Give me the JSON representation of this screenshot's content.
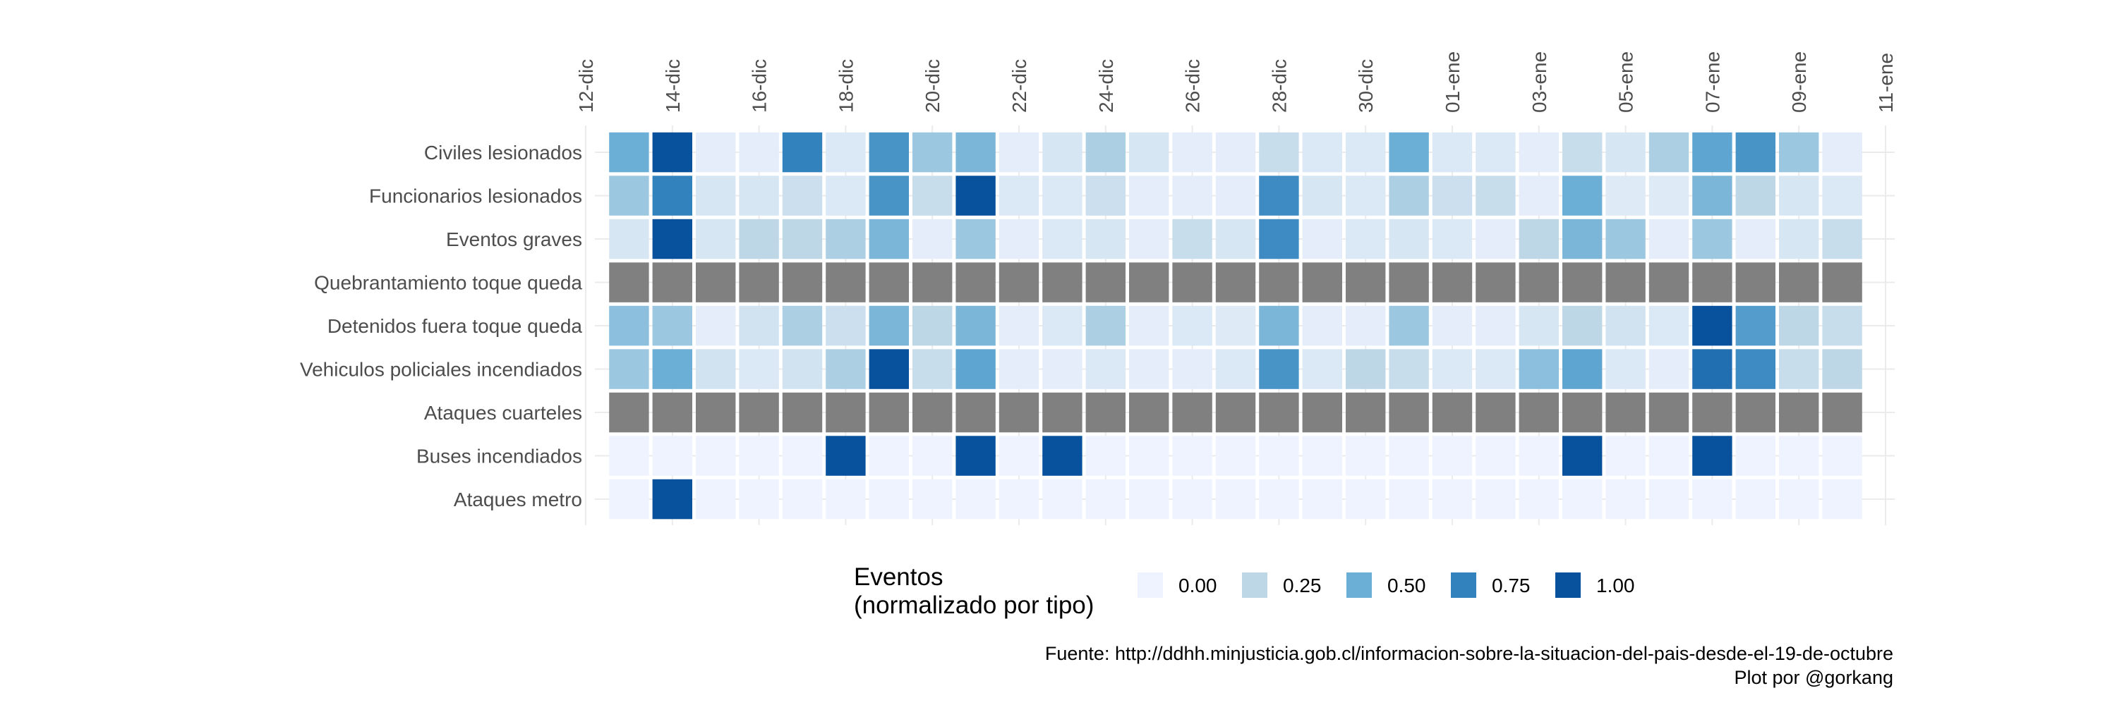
{
  "chart_data": {
    "type": "heatmap",
    "x_start": "12-dic",
    "x_tick_labels": [
      "12-dic",
      "14-dic",
      "16-dic",
      "18-dic",
      "20-dic",
      "22-dic",
      "24-dic",
      "26-dic",
      "28-dic",
      "30-dic",
      "01-ene",
      "03-ene",
      "05-ene",
      "07-ene",
      "09-ene",
      "11-ene"
    ],
    "x": [
      "13-dic",
      "14-dic",
      "15-dic",
      "16-dic",
      "17-dic",
      "18-dic",
      "19-dic",
      "20-dic",
      "21-dic",
      "22-dic",
      "23-dic",
      "24-dic",
      "25-dic",
      "26-dic",
      "27-dic",
      "28-dic",
      "29-dic",
      "30-dic",
      "31-dic",
      "01-ene",
      "02-ene",
      "03-ene",
      "04-ene",
      "05-ene",
      "06-ene",
      "07-ene",
      "08-ene",
      "09-ene",
      "10-ene"
    ],
    "rows": [
      {
        "name": "Civiles lesionados",
        "values": [
          0.5,
          1.0,
          0.05,
          0.05,
          0.75,
          0.1,
          0.65,
          0.35,
          0.45,
          0.05,
          0.12,
          0.3,
          0.12,
          0.05,
          0.05,
          0.2,
          0.1,
          0.1,
          0.5,
          0.1,
          0.1,
          0.05,
          0.2,
          0.12,
          0.3,
          0.55,
          0.65,
          0.35,
          0.05
        ]
      },
      {
        "name": "Funcionarios lesionados",
        "values": [
          0.35,
          0.75,
          0.12,
          0.12,
          0.18,
          0.1,
          0.65,
          0.2,
          1.0,
          0.1,
          0.1,
          0.18,
          0.05,
          0.05,
          0.05,
          0.7,
          0.12,
          0.1,
          0.3,
          0.18,
          0.2,
          0.05,
          0.5,
          0.08,
          0.08,
          0.45,
          0.25,
          0.12,
          0.1
        ]
      },
      {
        "name": "Eventos graves",
        "values": [
          0.12,
          1.0,
          0.12,
          0.25,
          0.25,
          0.3,
          0.45,
          0.05,
          0.35,
          0.05,
          0.1,
          0.12,
          0.05,
          0.2,
          0.12,
          0.7,
          0.05,
          0.1,
          0.12,
          0.1,
          0.05,
          0.25,
          0.45,
          0.35,
          0.05,
          0.35,
          0.05,
          0.12,
          0.2
        ]
      },
      {
        "name": "Quebrantamiento toque queda",
        "values": [
          null,
          null,
          null,
          null,
          null,
          null,
          null,
          null,
          null,
          null,
          null,
          null,
          null,
          null,
          null,
          null,
          null,
          null,
          null,
          null,
          null,
          null,
          null,
          null,
          null,
          null,
          null,
          null,
          null
        ]
      },
      {
        "name": "Detenidos fuera toque queda",
        "values": [
          0.4,
          0.35,
          0.05,
          0.15,
          0.3,
          0.18,
          0.45,
          0.25,
          0.45,
          0.05,
          0.1,
          0.3,
          0.05,
          0.1,
          0.08,
          0.45,
          0.05,
          0.05,
          0.35,
          0.05,
          0.05,
          0.12,
          0.25,
          0.15,
          0.1,
          1.0,
          0.6,
          0.25,
          0.2
        ]
      },
      {
        "name": "Vehiculos policiales incendiados",
        "values": [
          0.35,
          0.5,
          0.15,
          0.1,
          0.15,
          0.3,
          1.0,
          0.2,
          0.55,
          0.05,
          0.05,
          0.1,
          0.05,
          0.05,
          0.1,
          0.65,
          0.1,
          0.25,
          0.2,
          0.1,
          0.1,
          0.4,
          0.55,
          0.1,
          0.05,
          0.85,
          0.7,
          0.2,
          0.25
        ]
      },
      {
        "name": "Ataques cuarteles",
        "values": [
          null,
          null,
          null,
          null,
          null,
          null,
          null,
          null,
          null,
          null,
          null,
          null,
          null,
          null,
          null,
          null,
          null,
          null,
          null,
          null,
          null,
          null,
          null,
          null,
          null,
          null,
          null,
          null,
          null
        ]
      },
      {
        "name": "Buses incendiados",
        "values": [
          0,
          0,
          0,
          0,
          0,
          1.0,
          0,
          0,
          1.0,
          0,
          1.0,
          0,
          0,
          0,
          0,
          0,
          0,
          0,
          0,
          0,
          0,
          0,
          1.0,
          0,
          0,
          1.0,
          0,
          0,
          0
        ]
      },
      {
        "name": "Ataques metro",
        "values": [
          0,
          1.0,
          0,
          0,
          0,
          0,
          0,
          0,
          0,
          0,
          0,
          0,
          0,
          0,
          0,
          0,
          0,
          0,
          0,
          0,
          0,
          0,
          0,
          0,
          0,
          0,
          0,
          0,
          0
        ]
      }
    ],
    "na_color": "#808080",
    "legend": {
      "title_lines": [
        "Eventos",
        "(normalizado por tipo)"
      ],
      "breaks": [
        0,
        0.25,
        0.5,
        0.75,
        1.0
      ],
      "labels": [
        "0.00",
        "0.25",
        "0.50",
        "0.75",
        "1.00"
      ],
      "placement": "bottom"
    },
    "color_scale": [
      "#eff3ff",
      "#bdd7e7",
      "#6baed6",
      "#3182bd",
      "#08519c"
    ],
    "caption_lines": [
      "Fuente: http://ddhh.minjusticia.gob.cl/informacion-sobre-la-situacion-del-pais-desde-el-19-de-octubre",
      "Plot por @gorkang"
    ],
    "grid": true
  }
}
